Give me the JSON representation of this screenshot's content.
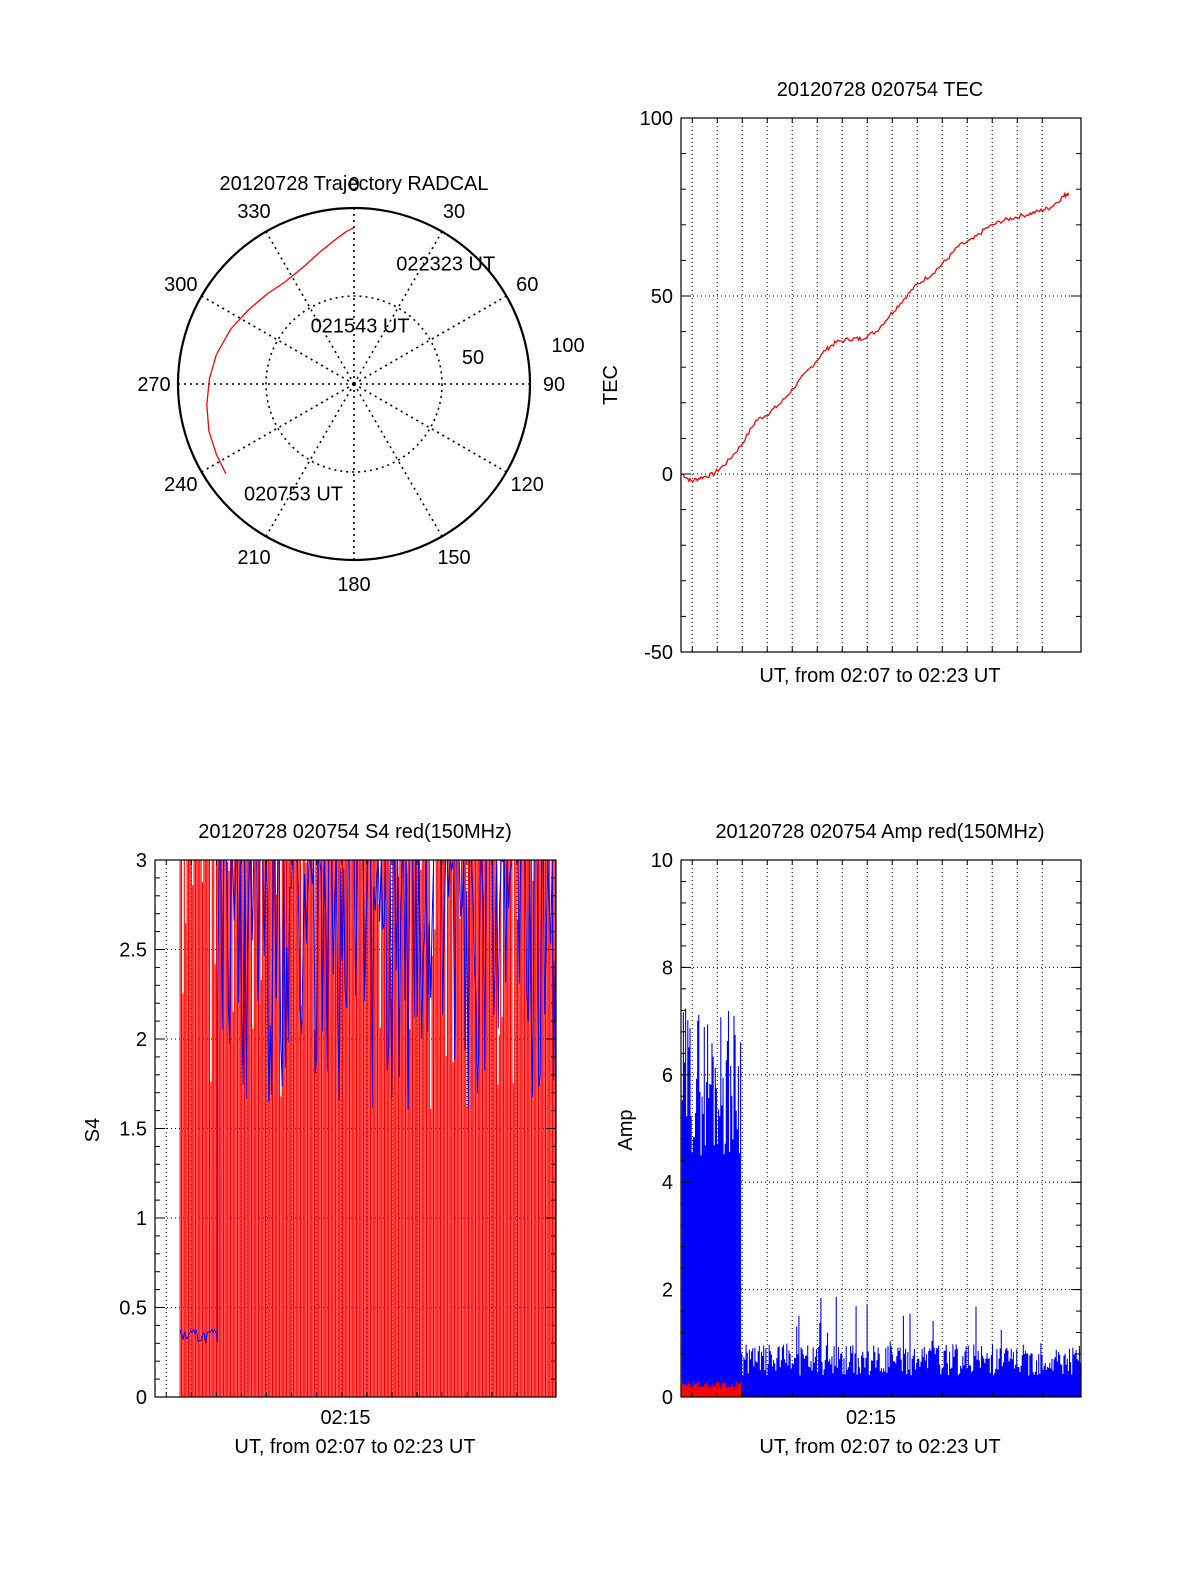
{
  "colors": {
    "red": "#ff0000",
    "blue": "#0000ff",
    "axis": "#000000",
    "grid": "#000000"
  },
  "chart_data": [
    {
      "type": "polar",
      "title": "20120728 Trajectory RADCAL",
      "angle_labels": [
        "0",
        "30",
        "60",
        "90",
        "120",
        "150",
        "180",
        "210",
        "240",
        "270",
        "300",
        "330"
      ],
      "radius_labels": [
        "50",
        "100"
      ],
      "rlim": [
        0,
        100
      ],
      "grid": true,
      "series": [
        {
          "color": "red",
          "points": [
            {
              "az": 235,
              "el": 10
            },
            {
              "az": 243,
              "el": 11
            },
            {
              "az": 252,
              "el": 12
            },
            {
              "az": 262,
              "el": 14
            },
            {
              "az": 272,
              "el": 16
            },
            {
              "az": 282,
              "el": 18
            },
            {
              "az": 294,
              "el": 21
            },
            {
              "az": 305,
              "el": 24
            },
            {
              "az": 316,
              "el": 26
            },
            {
              "az": 326,
              "el": 27
            },
            {
              "az": 336,
              "el": 25
            },
            {
              "az": 346,
              "el": 20
            },
            {
              "az": 352,
              "el": 16
            },
            {
              "az": 357,
              "el": 12
            },
            {
              "az": 360,
              "el": 10
            }
          ]
        }
      ],
      "annotations": [
        {
          "text": "020753 UT",
          "az": 224,
          "el": 12
        },
        {
          "text": "021543 UT",
          "az": 326,
          "el": 54
        },
        {
          "text": "022323 UT",
          "az": 21,
          "el": 24
        }
      ]
    },
    {
      "type": "line",
      "title": "20120728 020754 TEC",
      "xlabel": "UT, from 02:07 to 02:23 UT",
      "ylabel": "TEC",
      "xlim": [
        0,
        16
      ],
      "ylim": [
        -50,
        100
      ],
      "yticks": [
        "-50",
        "0",
        "50",
        "100"
      ],
      "xgrid": [
        0.45,
        1.45,
        2.45,
        3.45,
        4.45,
        5.45,
        6.45,
        7.45,
        8.45,
        9.45,
        10.45,
        11.45,
        12.45,
        13.45,
        14.45
      ],
      "series": [
        {
          "color": "red",
          "points": [
            [
              0.05,
              0
            ],
            [
              0.4,
              -2
            ],
            [
              0.8,
              -1
            ],
            [
              1.3,
              0
            ],
            [
              1.8,
              3
            ],
            [
              2.4,
              8
            ],
            [
              3.0,
              15
            ],
            [
              3.5,
              17
            ],
            [
              4.0,
              20
            ],
            [
              4.6,
              25
            ],
            [
              5.2,
              30
            ],
            [
              5.8,
              35
            ],
            [
              6.2,
              37
            ],
            [
              6.8,
              38
            ],
            [
              7.2,
              38
            ],
            [
              7.8,
              40
            ],
            [
              8.4,
              45
            ],
            [
              8.9,
              49
            ],
            [
              9.4,
              53
            ],
            [
              10.0,
              56
            ],
            [
              10.6,
              60
            ],
            [
              11.1,
              64
            ],
            [
              11.7,
              66
            ],
            [
              12.2,
              69
            ],
            [
              12.8,
              71
            ],
            [
              13.3,
              72
            ],
            [
              13.9,
              73
            ],
            [
              14.4,
              74
            ],
            [
              14.8,
              75
            ],
            [
              15.3,
              78
            ],
            [
              15.5,
              79
            ]
          ]
        }
      ]
    },
    {
      "type": "line",
      "title": "20120728 020754 S4 red(150MHz)",
      "xlabel": "UT, from 02:07 to 02:23 UT",
      "ylabel": "S4",
      "xticks": [
        "02:15"
      ],
      "xlim": [
        0,
        16
      ],
      "ylim": [
        0,
        3
      ],
      "yticks": [
        "0",
        "0.5",
        "1",
        "1.5",
        "2",
        "2.5",
        "3"
      ],
      "xgrid": [
        0.45,
        1.45,
        2.45,
        3.45,
        4.45,
        5.45,
        6.45,
        7.45,
        8.45,
        9.45,
        10.45,
        11.45,
        12.45,
        13.45,
        14.45
      ],
      "series": [
        {
          "color": "red",
          "description_values": [
            0,
            3
          ]
        },
        {
          "color": "blue",
          "description_values": [
            0.35,
            3
          ]
        }
      ]
    },
    {
      "type": "line",
      "title": "20120728 020754 Amp red(150MHz)",
      "xlabel": "UT, from 02:07 to 02:23 UT",
      "ylabel": "Amp",
      "xticks": [
        "02:15"
      ],
      "xlim": [
        0,
        16
      ],
      "ylim": [
        0,
        10
      ],
      "yticks": [
        "0",
        "2",
        "4",
        "6",
        "8",
        "10"
      ],
      "xgrid": [
        0.45,
        1.45,
        2.45,
        3.45,
        4.45,
        5.45,
        6.45,
        7.45,
        8.45,
        9.45,
        10.45,
        11.45,
        12.45,
        13.45,
        14.45
      ],
      "series": [
        {
          "color": "red",
          "description_values": [
            0,
            0.3
          ]
        },
        {
          "color": "blue",
          "description_values": [
            0,
            7.5
          ]
        }
      ]
    }
  ]
}
